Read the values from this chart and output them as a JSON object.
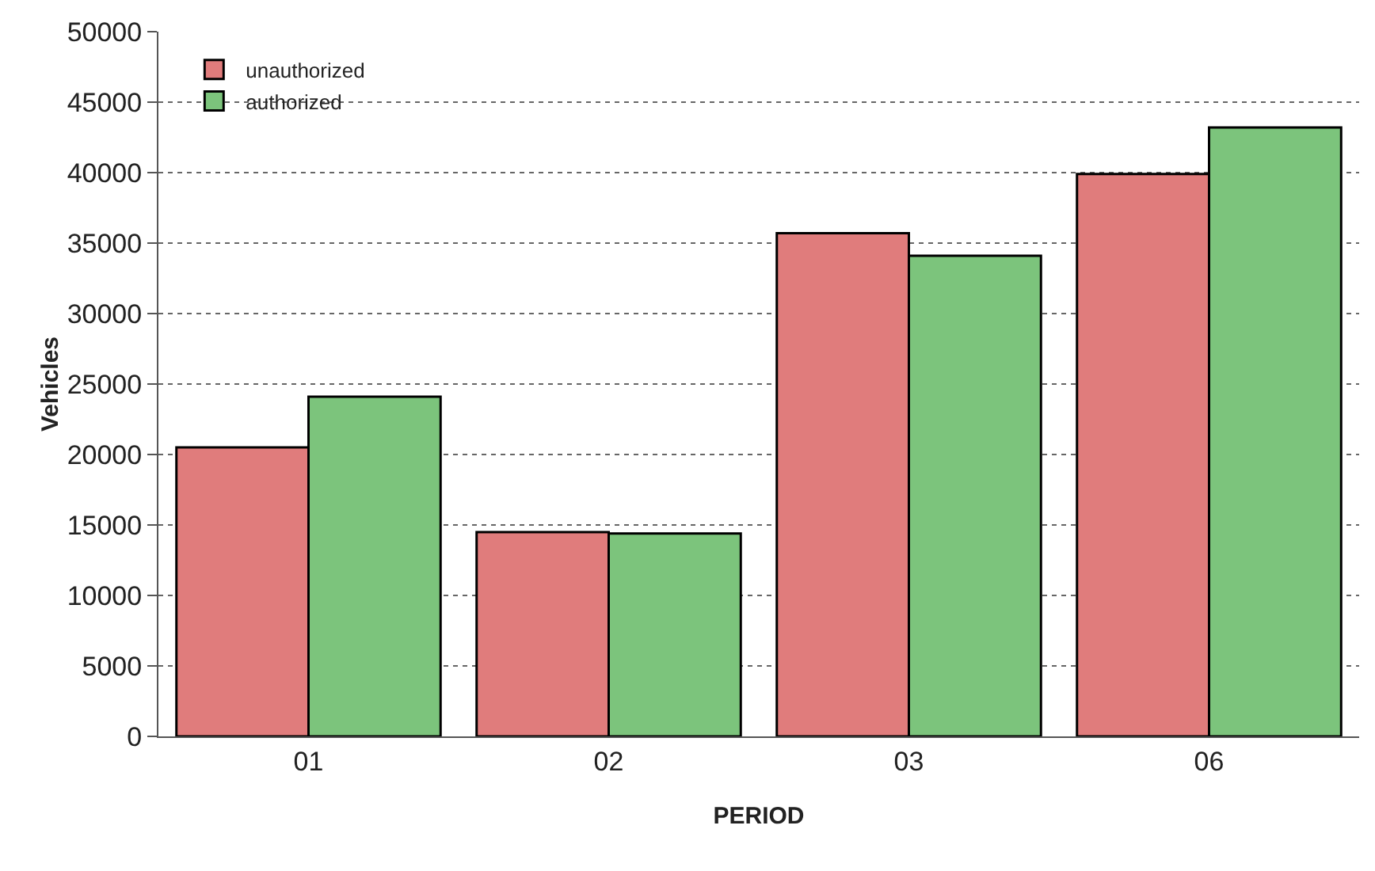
{
  "chart_data": {
    "type": "bar",
    "xlabel": "PERIOD",
    "ylabel": "Vehicles",
    "categories": [
      "01",
      "02",
      "03",
      "06"
    ],
    "series": [
      {
        "name": "unauthorized",
        "color": "#e07c7c",
        "values": [
          20500,
          14500,
          35700,
          39900
        ]
      },
      {
        "name": "authorized",
        "color": "#7cc47c",
        "values": [
          24100,
          14400,
          34100,
          43200
        ]
      }
    ],
    "ylim": [
      0,
      50000
    ],
    "yticks": [
      0,
      5000,
      10000,
      15000,
      20000,
      25000,
      30000,
      35000,
      40000,
      45000,
      50000
    ],
    "grid": "y",
    "legend": "top left"
  }
}
